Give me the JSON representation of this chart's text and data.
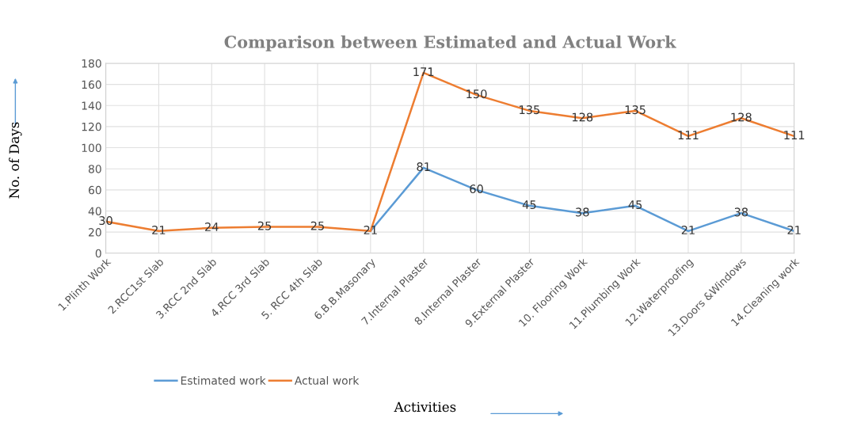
{
  "chart_data": {
    "type": "line",
    "title": "Comparison between Estimated and Actual Work",
    "xlabel": "Activities",
    "ylabel": "No. of Days",
    "categories": [
      "1.Plinth Work",
      "2.RCC1st Slab",
      "3.RCC 2nd Slab",
      "4.RCC 3rd Slab",
      "5. RCC 4th Slab",
      "6.B.B.Masonary",
      "7.Internal Plaster",
      "8.Internal Plaster",
      "9.External Plaster",
      "10. Flooring Work",
      "11.Plumbing Work",
      "12.Waterproofing",
      "13.Doors &Windows",
      "14.Cleaning work"
    ],
    "series": [
      {
        "name": "Estimated work",
        "color": "#5b9bd5",
        "values": [
          null,
          null,
          null,
          null,
          null,
          21,
          81,
          60,
          45,
          38,
          45,
          21,
          38,
          21
        ],
        "value_labels": [
          null,
          null,
          null,
          null,
          null,
          null,
          "81",
          "60",
          "45",
          "38",
          "45",
          "21",
          "38",
          "21"
        ]
      },
      {
        "name": "Actual work",
        "color": "#ed7d31",
        "values": [
          30,
          21,
          24,
          25,
          25,
          21,
          171,
          150,
          135,
          128,
          135,
          111,
          128,
          111
        ],
        "value_labels": [
          "30",
          "21",
          "24",
          "25",
          "25",
          "21",
          "171",
          "150",
          "135",
          "128",
          "135",
          "111",
          "128",
          "111"
        ]
      }
    ],
    "ylim": [
      0,
      180
    ],
    "yticks": [
      0,
      20,
      40,
      60,
      80,
      100,
      120,
      140,
      160,
      180
    ],
    "grid": true,
    "legend": "bottom left",
    "line_style": "solid"
  }
}
